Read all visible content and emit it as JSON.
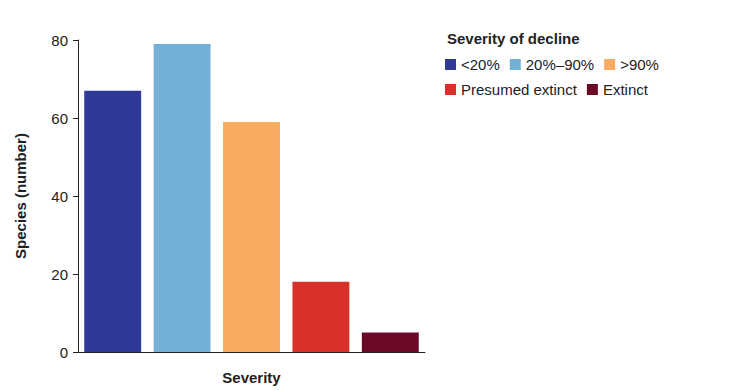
{
  "chart_data": {
    "type": "bar",
    "legend_title": "Severity of decline",
    "x_label": "Severity",
    "y_label": "Species (number)",
    "categories": [
      "<20%",
      "20%–90%",
      ">90%",
      "Presumed extinct",
      "Extinct"
    ],
    "values": [
      67,
      79,
      59,
      18,
      5
    ],
    "colors": [
      "#303a96",
      "#74b0d6",
      "#f8ac62",
      "#d8312a",
      "#6a0a26"
    ],
    "ylim": [
      0,
      80
    ],
    "yticks": [
      0,
      20,
      40,
      60,
      80
    ],
    "grid": false,
    "legend": "upper right",
    "tick_labels": "y"
  }
}
